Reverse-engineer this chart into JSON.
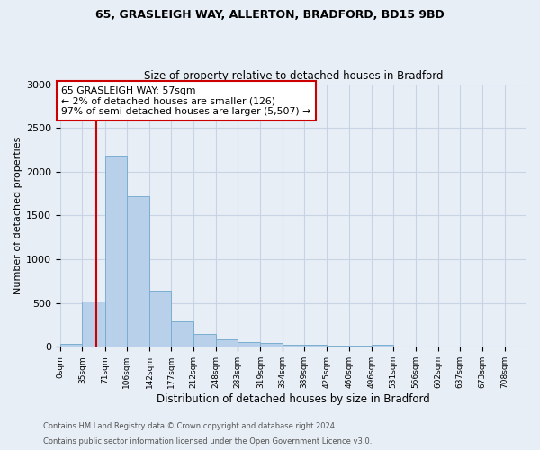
{
  "title_line1": "65, GRASLEIGH WAY, ALLERTON, BRADFORD, BD15 9BD",
  "title_line2": "Size of property relative to detached houses in Bradford",
  "xlabel": "Distribution of detached houses by size in Bradford",
  "ylabel": "Number of detached properties",
  "annotation_line1": "65 GRASLEIGH WAY: 57sqm",
  "annotation_line2": "← 2% of detached houses are smaller (126)",
  "annotation_line3": "97% of semi-detached houses are larger (5,507) →",
  "footer_line1": "Contains HM Land Registry data © Crown copyright and database right 2024.",
  "footer_line2": "Contains public sector information licensed under the Open Government Licence v3.0.",
  "bin_labels": [
    "0sqm",
    "35sqm",
    "71sqm",
    "106sqm",
    "142sqm",
    "177sqm",
    "212sqm",
    "248sqm",
    "283sqm",
    "319sqm",
    "354sqm",
    "389sqm",
    "425sqm",
    "460sqm",
    "496sqm",
    "531sqm",
    "566sqm",
    "602sqm",
    "637sqm",
    "673sqm",
    "708sqm"
  ],
  "bin_edges": [
    0,
    35,
    71,
    106,
    142,
    177,
    212,
    248,
    283,
    319,
    354,
    389,
    425,
    460,
    496,
    531,
    566,
    602,
    637,
    673,
    708
  ],
  "bar_heights": [
    30,
    520,
    2180,
    1720,
    640,
    290,
    150,
    90,
    55,
    40,
    25,
    20,
    15,
    12,
    25,
    5,
    3,
    3,
    2,
    2,
    2
  ],
  "bar_color": "#b8d0ea",
  "bar_edge_color": "#7aaed0",
  "red_line_x": 57,
  "ylim": [
    0,
    3000
  ],
  "yticks": [
    0,
    500,
    1000,
    1500,
    2000,
    2500,
    3000
  ],
  "annotation_box_color": "#ffffff",
  "annotation_box_edge": "#cc0000",
  "red_line_color": "#cc0000",
  "grid_color": "#c8d4e4",
  "bg_color": "#e8eef6"
}
